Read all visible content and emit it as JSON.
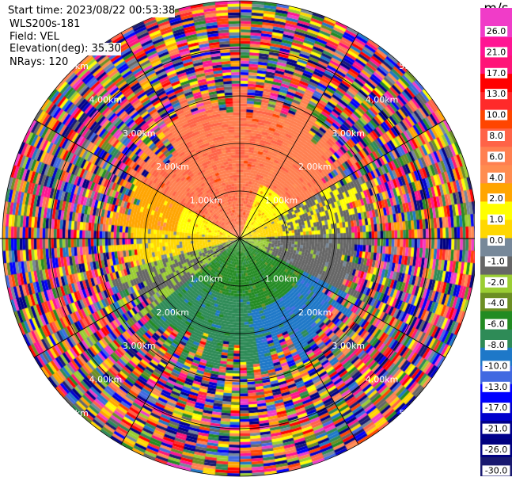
{
  "header": {
    "start_time": "Start time: 2023/08/22 00:53:38",
    "instrument": "WLS200s-181",
    "field": "Field: VEL",
    "elevation": "Elevation(deg): 35.30",
    "nrays": "NRays: 120"
  },
  "chart_data": {
    "type": "heatmap",
    "subtype": "polar PPI radar scan",
    "field": "VEL",
    "nrays": 120,
    "elevation_deg": 35.3,
    "range_rings_km": [
      1,
      2,
      3,
      4,
      5
    ],
    "ring_labels": [
      "1.00km",
      "2.00km",
      "3.00km",
      "4.00km",
      "5.00km"
    ],
    "spoke_interval_deg": 30,
    "colorbar": {
      "unit": "m/s",
      "ticks": [
        "26.0",
        "21.0",
        "17.0",
        "13.0",
        "10.0",
        "8.0",
        "6.0",
        "4.0",
        "2.0",
        "1.0",
        "0.0",
        "-1.0",
        "-2.0",
        "-4.0",
        "-6.0",
        "-8.0",
        "-10.0",
        "-13.0",
        "-17.0",
        "-21.0",
        "-26.0",
        "-30.0"
      ],
      "colors": [
        "#f03cc8",
        "#ff1493",
        "#ff1478",
        "#ff0000",
        "#ff2a2a",
        "#ff4500",
        "#ff6347",
        "#ff7f50",
        "#ff8c50",
        "#ffa500",
        "#ffff00",
        "#ffd700",
        "#778899",
        "#666666",
        "#9acd32",
        "#6b8e23",
        "#228b22",
        "#2e8b57",
        "#1e78c8",
        "#4169e1",
        "#0000ff",
        "#0000cd",
        "#00008b",
        "#000080",
        "#191970"
      ]
    }
  }
}
